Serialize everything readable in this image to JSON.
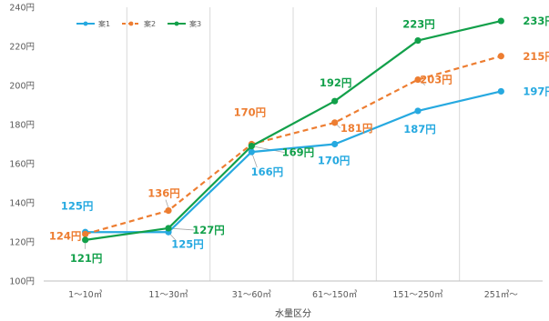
{
  "chart_data": {
    "type": "line",
    "categories": [
      "1～10㎥",
      "11～30㎥",
      "31～60㎥",
      "61～150㎥",
      "151～250㎥",
      "251㎥～"
    ],
    "xlabel": "水量区分",
    "ylabel": "",
    "ylim": [
      100,
      240
    ],
    "yticks": [
      "100円",
      "120円",
      "140円",
      "160円",
      "180円",
      "200円",
      "220円",
      "240円"
    ],
    "ytick_values": [
      100,
      120,
      140,
      160,
      180,
      200,
      220,
      240
    ],
    "grid": "vertical",
    "legend_position": "top-left",
    "series": [
      {
        "name": "案1",
        "color": "#26a9e0",
        "dash": "solid",
        "values": [
          125,
          125,
          166,
          170,
          187,
          197
        ],
        "labels": [
          "125円",
          "125円",
          "166円",
          "170円",
          "187円",
          "197円"
        ]
      },
      {
        "name": "案2",
        "color": "#ed7d31",
        "dash": "dashed",
        "values": [
          124,
          136,
          170,
          181,
          203,
          215
        ],
        "labels": [
          "124円",
          "136円",
          "170円",
          "181円",
          "203円",
          "215円"
        ]
      },
      {
        "name": "案3",
        "color": "#12a04a",
        "dash": "solid",
        "values": [
          121,
          127,
          169,
          192,
          223,
          233
        ],
        "labels": [
          "121円",
          "127円",
          "169円",
          "192円",
          "223円",
          "233円"
        ]
      }
    ]
  }
}
